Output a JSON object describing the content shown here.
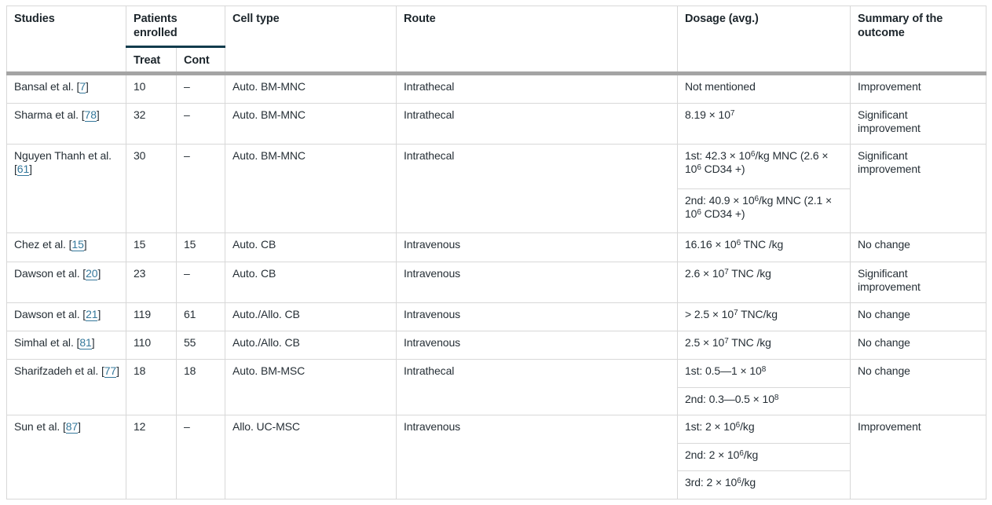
{
  "table": {
    "headers": {
      "studies": "Studies",
      "patients_enrolled": "Patients enrolled",
      "treat": "Treat",
      "cont": "Cont",
      "cell_type": "Cell type",
      "route": "Route",
      "dosage": "Dosage (avg.)",
      "summary": "Summary of the outcome"
    },
    "rows": [
      {
        "study_prefix": "Bansal et al. [",
        "ref": "7",
        "study_suffix": "]",
        "treat": "10",
        "cont": "–",
        "cell_type": "Auto. BM-MNC",
        "route": "Intrathecal",
        "dosages": [
          "Not mentioned"
        ],
        "summary": "Improvement"
      },
      {
        "study_prefix": "Sharma et al. [",
        "ref": "78",
        "study_suffix": "]",
        "treat": "32",
        "cont": "–",
        "cell_type": "Auto. BM-MNC",
        "route": "Intrathecal",
        "dosages": [
          "8.19 × 10^7"
        ],
        "summary": "Significant improvement"
      },
      {
        "study_prefix": "Nguyen Thanh et al. [",
        "ref": "61",
        "study_suffix": "]",
        "treat": "30",
        "cont": "–",
        "cell_type": "Auto. BM-MNC",
        "route": "Intrathecal",
        "dosages": [
          "1st: 42.3 × 10^6/kg MNC (2.6 × 10^6 CD34 +)",
          "2nd: 40.9 × 10^6/kg MNC (2.1 × 10^6 CD34 +)"
        ],
        "summary": "Significant improvement"
      },
      {
        "study_prefix": "Chez et al. [",
        "ref": "15",
        "study_suffix": "]",
        "treat": "15",
        "cont": "15",
        "cell_type": "Auto. CB",
        "route": "Intravenous",
        "dosages": [
          "16.16 × 10^6 TNC /kg"
        ],
        "summary": "No change"
      },
      {
        "study_prefix": "Dawson et al. [",
        "ref": "20",
        "study_suffix": "]",
        "treat": "23",
        "cont": "–",
        "cell_type": "Auto. CB",
        "route": "Intravenous",
        "dosages": [
          "2.6 × 10^7 TNC /kg"
        ],
        "summary": "Significant improvement"
      },
      {
        "study_prefix": "Dawson et al. [",
        "ref": "21",
        "study_suffix": "]",
        "treat": "119",
        "cont": "61",
        "cell_type": "Auto./Allo. CB",
        "route": "Intravenous",
        "dosages": [
          "> 2.5 × 10^7 TNC/kg"
        ],
        "summary": "No change"
      },
      {
        "study_prefix": "Simhal et al. [",
        "ref": "81",
        "study_suffix": "]",
        "treat": "110",
        "cont": "55",
        "cell_type": "Auto./Allo. CB",
        "route": "Intravenous",
        "dosages": [
          "2.5 × 10^7 TNC /kg"
        ],
        "summary": "No change"
      },
      {
        "study_prefix": "Sharifzadeh et al. [",
        "ref": "77",
        "study_suffix": "]",
        "treat": "18",
        "cont": "18",
        "cell_type": "Auto. BM-MSC",
        "route": "Intrathecal",
        "dosages": [
          "1st: 0.5—1 × 10^8",
          "2nd: 0.3—0.5 × 10^8"
        ],
        "summary": "No change"
      },
      {
        "study_prefix": "Sun et al. [",
        "ref": "87",
        "study_suffix": "]",
        "treat": "12",
        "cont": "–",
        "cell_type": "Allo. UC-MSC",
        "route": "Intravenous",
        "dosages": [
          "1st: 2 × 10^6/kg",
          "2nd: 2 × 10^6/kg",
          "3rd: 2 × 10^6/kg"
        ],
        "summary": "Improvement"
      }
    ],
    "colors": {
      "text": "#262f36",
      "link": "#35789b",
      "header_rule": "#123c4d",
      "thick_divider": "#a4a4a4",
      "cell_border": "#d8d8d8",
      "background": "#ffffff"
    }
  }
}
